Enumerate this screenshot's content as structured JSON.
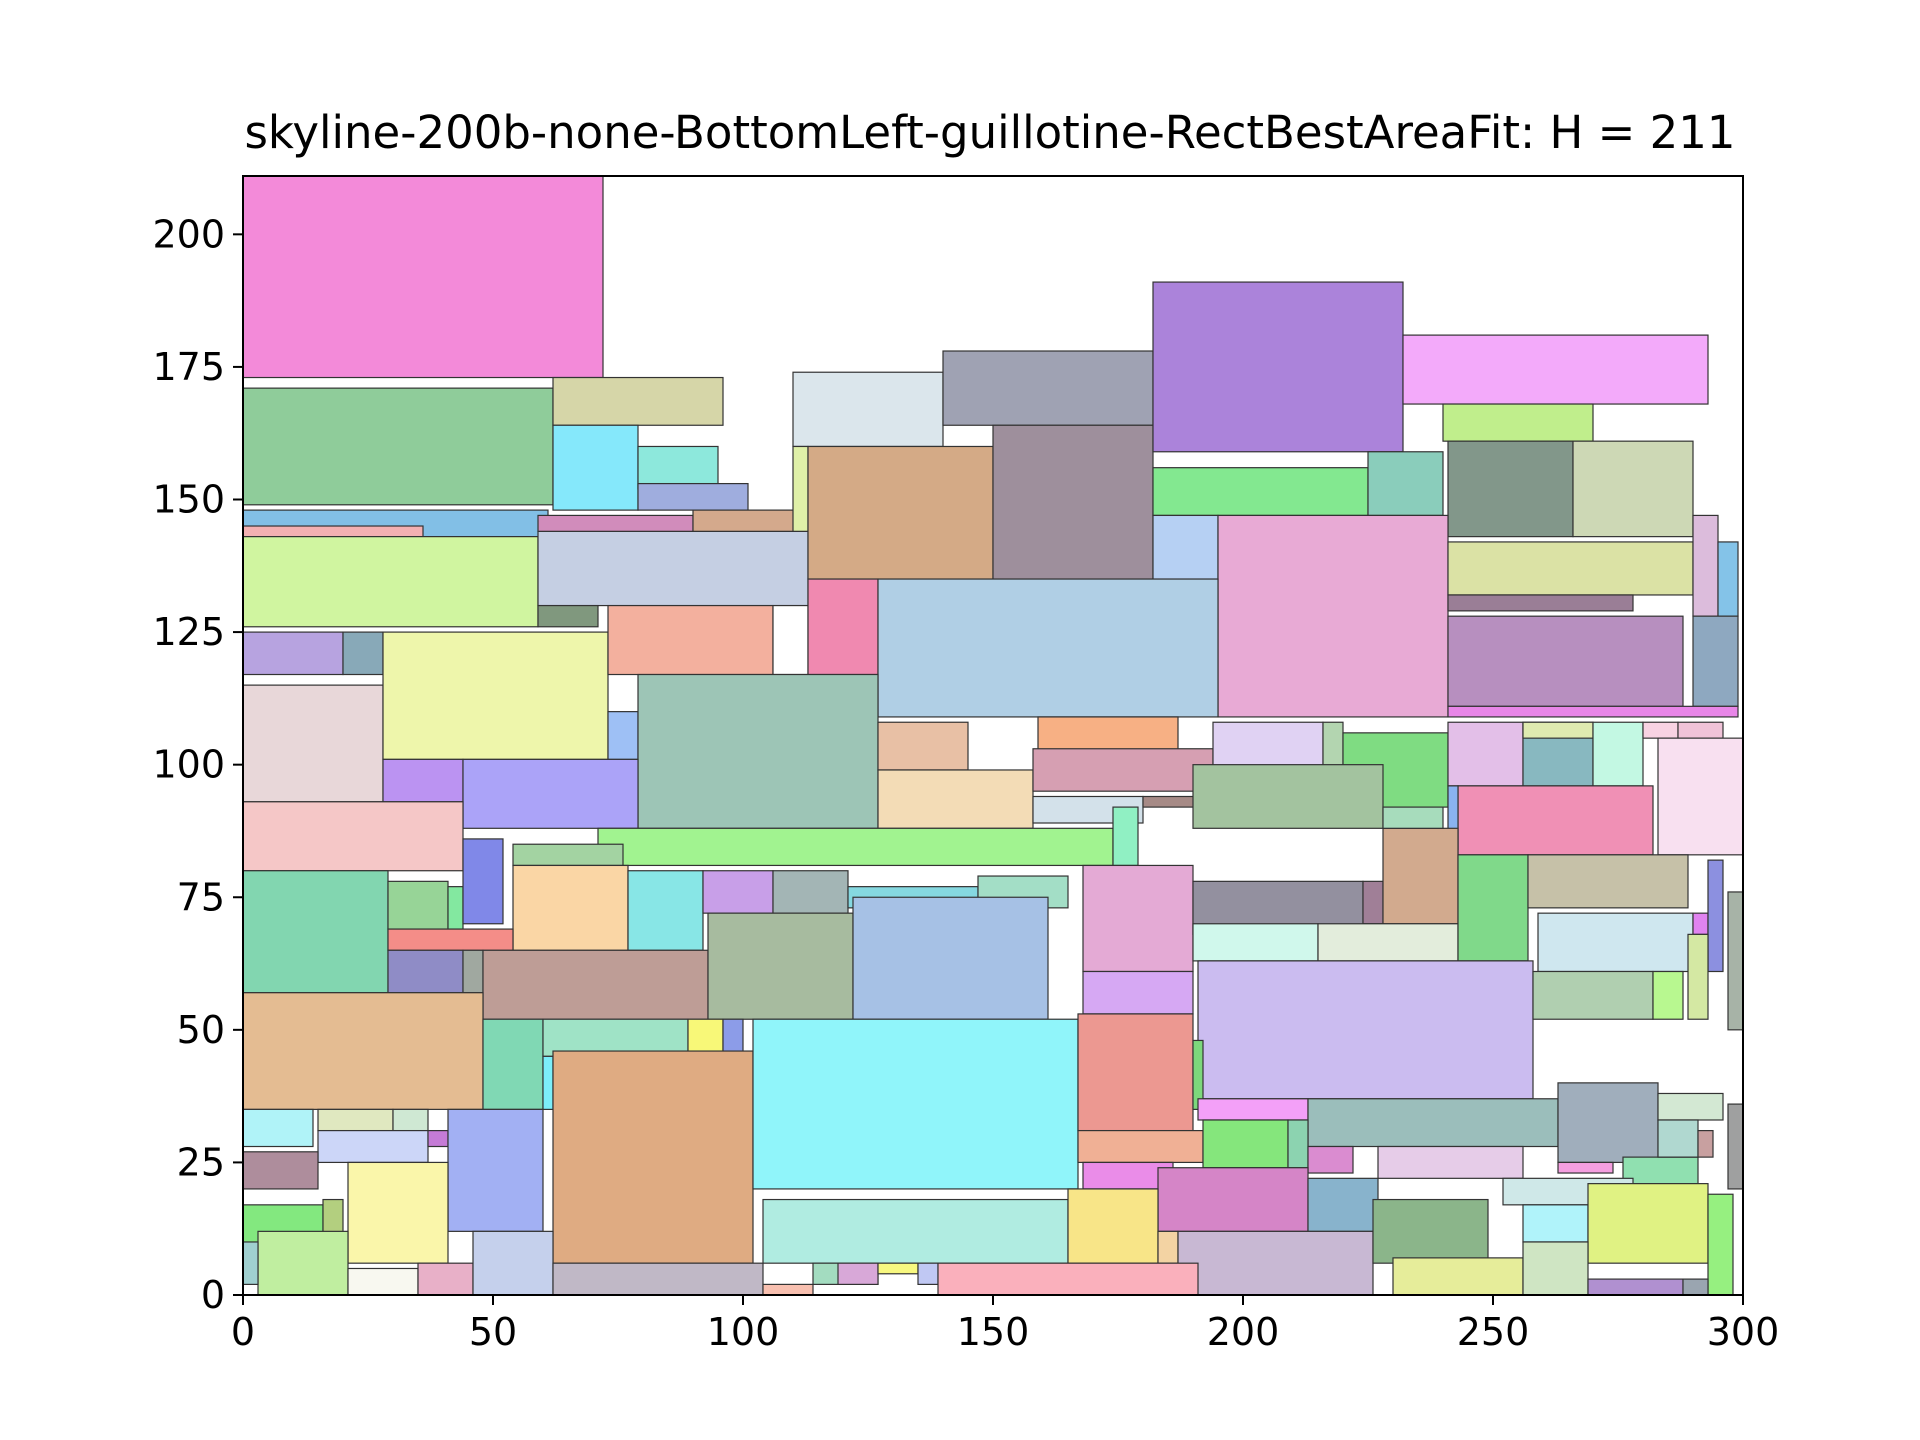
{
  "chart_data": {
    "type": "rectangle-packing",
    "title": "skyline-200b-none-BottomLeft-guillotine-RectBestAreaFit: H = 211",
    "xlabel": "",
    "ylabel": "",
    "xlim": [
      0,
      300
    ],
    "ylim": [
      0,
      211
    ],
    "xticks": [
      0,
      50,
      100,
      150,
      200,
      250,
      300
    ],
    "yticks": [
      0,
      25,
      50,
      75,
      100,
      125,
      150,
      175,
      200
    ],
    "grid": false,
    "legend": "none",
    "rects": [
      {
        "x": 0,
        "y": 173,
        "w": 72,
        "h": 38,
        "color": "#f38ad9"
      },
      {
        "x": 0,
        "y": 149,
        "w": 62,
        "h": 22,
        "color": "#8fcc9a"
      },
      {
        "x": 62,
        "y": 164,
        "w": 34,
        "h": 9,
        "color": "#d6d6a8"
      },
      {
        "x": 62,
        "y": 148,
        "w": 17,
        "h": 16,
        "color": "#85e8fb"
      },
      {
        "x": 79,
        "y": 152,
        "w": 16,
        "h": 8,
        "color": "#8de8dc"
      },
      {
        "x": 79,
        "y": 148,
        "w": 22,
        "h": 5,
        "color": "#9fadde"
      },
      {
        "x": 0,
        "y": 143,
        "w": 61,
        "h": 5,
        "color": "#82bfe6"
      },
      {
        "x": 0,
        "y": 143,
        "w": 36,
        "h": 2,
        "color": "#f3b0b2"
      },
      {
        "x": 0,
        "y": 126,
        "w": 59,
        "h": 17,
        "color": "#d0f5a0"
      },
      {
        "x": 59,
        "y": 130,
        "w": 54,
        "h": 14,
        "color": "#c5cfe3"
      },
      {
        "x": 59,
        "y": 144,
        "w": 31,
        "h": 3,
        "color": "#d18cbb"
      },
      {
        "x": 90,
        "y": 144,
        "w": 21,
        "h": 4,
        "color": "#d4a98c"
      },
      {
        "x": 59,
        "y": 126,
        "w": 12,
        "h": 4,
        "color": "#80987e"
      },
      {
        "x": 110,
        "y": 160,
        "w": 30,
        "h": 14,
        "color": "#dbe6ec"
      },
      {
        "x": 110,
        "y": 144,
        "w": 3,
        "h": 16,
        "color": "#dff0a8"
      },
      {
        "x": 113,
        "y": 135,
        "w": 37,
        "h": 25,
        "color": "#d4aa86"
      },
      {
        "x": 140,
        "y": 164,
        "w": 42,
        "h": 14,
        "color": "#9fa2b3"
      },
      {
        "x": 150,
        "y": 135,
        "w": 32,
        "h": 29,
        "color": "#9e8f9c"
      },
      {
        "x": 182,
        "y": 159,
        "w": 50,
        "h": 32,
        "color": "#ab83da"
      },
      {
        "x": 232,
        "y": 168,
        "w": 61,
        "h": 13,
        "color": "#f3aafa"
      },
      {
        "x": 240,
        "y": 161,
        "w": 30,
        "h": 7,
        "color": "#c0ee8c"
      },
      {
        "x": 182,
        "y": 147,
        "w": 43,
        "h": 9,
        "color": "#83e890"
      },
      {
        "x": 225,
        "y": 147,
        "w": 15,
        "h": 12,
        "color": "#8acdbb"
      },
      {
        "x": 241,
        "y": 143,
        "w": 25,
        "h": 18,
        "color": "#82978a"
      },
      {
        "x": 266,
        "y": 143,
        "w": 24,
        "h": 18,
        "color": "#cdd8b5"
      },
      {
        "x": 182,
        "y": 135,
        "w": 13,
        "h": 12,
        "color": "#b6d0f3"
      },
      {
        "x": 195,
        "y": 109,
        "w": 46,
        "h": 38,
        "color": "#e8aad5"
      },
      {
        "x": 241,
        "y": 132,
        "w": 49,
        "h": 10,
        "color": "#dbe2a5"
      },
      {
        "x": 290,
        "y": 128,
        "w": 5,
        "h": 19,
        "color": "#dcbcdc"
      },
      {
        "x": 295,
        "y": 128,
        "w": 4,
        "h": 14,
        "color": "#84c3e8"
      },
      {
        "x": 241,
        "y": 129,
        "w": 37,
        "h": 3,
        "color": "#9a7e96"
      },
      {
        "x": 241,
        "y": 111,
        "w": 47,
        "h": 17,
        "color": "#b78fbf"
      },
      {
        "x": 290,
        "y": 111,
        "w": 9,
        "h": 17,
        "color": "#8ea8c0"
      },
      {
        "x": 241,
        "y": 109,
        "w": 58,
        "h": 2,
        "color": "#e886e8"
      },
      {
        "x": 0,
        "y": 117,
        "w": 20,
        "h": 8,
        "color": "#b7a3e0"
      },
      {
        "x": 20,
        "y": 117,
        "w": 8,
        "h": 8,
        "color": "#88a9b8"
      },
      {
        "x": 0,
        "y": 93,
        "w": 28,
        "h": 22,
        "color": "#e8d7d9"
      },
      {
        "x": 28,
        "y": 101,
        "w": 45,
        "h": 24,
        "color": "#eef6ab"
      },
      {
        "x": 73,
        "y": 117,
        "w": 33,
        "h": 13,
        "color": "#f3b09e"
      },
      {
        "x": 106,
        "y": 117,
        "w": 7,
        "h": 13,
        "color": "#ffffff"
      },
      {
        "x": 113,
        "y": 117,
        "w": 14,
        "h": 18,
        "color": "#f089b0"
      },
      {
        "x": 127,
        "y": 109,
        "w": 68,
        "h": 26,
        "color": "#b0cfe5"
      },
      {
        "x": 73,
        "y": 101,
        "w": 6,
        "h": 9,
        "color": "#9ec0f5"
      },
      {
        "x": 79,
        "y": 88,
        "w": 48,
        "h": 29,
        "color": "#9dc5b6"
      },
      {
        "x": 28,
        "y": 93,
        "w": 16,
        "h": 8,
        "color": "#bb93f2"
      },
      {
        "x": 44,
        "y": 88,
        "w": 35,
        "h": 13,
        "color": "#aba3f8"
      },
      {
        "x": 0,
        "y": 80,
        "w": 44,
        "h": 13,
        "color": "#f5c7c7"
      },
      {
        "x": 127,
        "y": 99,
        "w": 18,
        "h": 9,
        "color": "#e8c0a5"
      },
      {
        "x": 159,
        "y": 102,
        "w": 28,
        "h": 7,
        "color": "#f7b084"
      },
      {
        "x": 127,
        "y": 88,
        "w": 31,
        "h": 11,
        "color": "#f3dcb6"
      },
      {
        "x": 158,
        "y": 95,
        "w": 36,
        "h": 8,
        "color": "#d69fb2"
      },
      {
        "x": 158,
        "y": 89,
        "w": 22,
        "h": 5,
        "color": "#d3e1ea"
      },
      {
        "x": 180,
        "y": 92,
        "w": 40,
        "h": 2,
        "color": "#a68a86"
      },
      {
        "x": 194,
        "y": 94,
        "w": 22,
        "h": 14,
        "color": "#e0d2f3"
      },
      {
        "x": 216,
        "y": 94,
        "w": 4,
        "h": 14,
        "color": "#b3d5b0"
      },
      {
        "x": 220,
        "y": 92,
        "w": 21,
        "h": 14,
        "color": "#7fdc82"
      },
      {
        "x": 241,
        "y": 96,
        "w": 15,
        "h": 12,
        "color": "#e3bfe8"
      },
      {
        "x": 256,
        "y": 96,
        "w": 14,
        "h": 12,
        "color": "#88b8c0"
      },
      {
        "x": 256,
        "y": 105,
        "w": 14,
        "h": 3,
        "color": "#dfeab0"
      },
      {
        "x": 270,
        "y": 96,
        "w": 10,
        "h": 12,
        "color": "#c3f8e3"
      },
      {
        "x": 280,
        "y": 105,
        "w": 7,
        "h": 3,
        "color": "#f8d3e3"
      },
      {
        "x": 287,
        "y": 105,
        "w": 9,
        "h": 3,
        "color": "#f0c3d8"
      },
      {
        "x": 283,
        "y": 83,
        "w": 17,
        "h": 22,
        "color": "#f8e0f0"
      },
      {
        "x": 243,
        "y": 83,
        "w": 39,
        "h": 13,
        "color": "#f090b5"
      },
      {
        "x": 241,
        "y": 84,
        "w": 2,
        "h": 12,
        "color": "#8ab3f0"
      },
      {
        "x": 71,
        "y": 81,
        "w": 103,
        "h": 7,
        "color": "#a1f390"
      },
      {
        "x": 174,
        "y": 81,
        "w": 5,
        "h": 11,
        "color": "#90f0c3"
      },
      {
        "x": 0,
        "y": 57,
        "w": 29,
        "h": 23,
        "color": "#82d6b0"
      },
      {
        "x": 29,
        "y": 69,
        "w": 12,
        "h": 9,
        "color": "#97d497"
      },
      {
        "x": 41,
        "y": 69,
        "w": 3,
        "h": 8,
        "color": "#83e8a0"
      },
      {
        "x": 44,
        "y": 70,
        "w": 8,
        "h": 16,
        "color": "#8088e8"
      },
      {
        "x": 54,
        "y": 81,
        "w": 22,
        "h": 4,
        "color": "#a3d3a2"
      },
      {
        "x": 54,
        "y": 65,
        "w": 23,
        "h": 16,
        "color": "#fad6a5"
      },
      {
        "x": 77,
        "y": 65,
        "w": 15,
        "h": 15,
        "color": "#88e6e6"
      },
      {
        "x": 92,
        "y": 72,
        "w": 14,
        "h": 8,
        "color": "#c89fe8"
      },
      {
        "x": 106,
        "y": 72,
        "w": 15,
        "h": 8,
        "color": "#a3b5b5"
      },
      {
        "x": 121,
        "y": 73,
        "w": 26,
        "h": 4,
        "color": "#85d8e0"
      },
      {
        "x": 147,
        "y": 73,
        "w": 18,
        "h": 6,
        "color": "#a3dec6"
      },
      {
        "x": 29,
        "y": 65,
        "w": 25,
        "h": 4,
        "color": "#f48d88"
      },
      {
        "x": 29,
        "y": 57,
        "w": 15,
        "h": 8,
        "color": "#8f8cc6"
      },
      {
        "x": 44,
        "y": 57,
        "w": 4,
        "h": 8,
        "color": "#a0a8a0"
      },
      {
        "x": 48,
        "y": 52,
        "w": 45,
        "h": 13,
        "color": "#be9d96"
      },
      {
        "x": 93,
        "y": 52,
        "w": 29,
        "h": 20,
        "color": "#a7bb9f"
      },
      {
        "x": 122,
        "y": 52,
        "w": 39,
        "h": 23,
        "color": "#a6c1e5"
      },
      {
        "x": 168,
        "y": 61,
        "w": 22,
        "h": 20,
        "color": "#e4aad5"
      },
      {
        "x": 168,
        "y": 53,
        "w": 22,
        "h": 8,
        "color": "#d6a8f3"
      },
      {
        "x": 190,
        "y": 68,
        "w": 34,
        "h": 10,
        "color": "#93909f"
      },
      {
        "x": 190,
        "y": 88,
        "w": 38,
        "h": 12,
        "color": "#a3c39f"
      },
      {
        "x": 224,
        "y": 70,
        "w": 4,
        "h": 8,
        "color": "#a07f97"
      },
      {
        "x": 228,
        "y": 70,
        "w": 15,
        "h": 18,
        "color": "#d2aa8e"
      },
      {
        "x": 228,
        "y": 88,
        "w": 12,
        "h": 4,
        "color": "#a7dcbc"
      },
      {
        "x": 190,
        "y": 63,
        "w": 25,
        "h": 7,
        "color": "#d0f8ec"
      },
      {
        "x": 215,
        "y": 63,
        "w": 28,
        "h": 7,
        "color": "#e3eddc"
      },
      {
        "x": 243,
        "y": 63,
        "w": 14,
        "h": 20,
        "color": "#80d98a"
      },
      {
        "x": 257,
        "y": 73,
        "w": 32,
        "h": 10,
        "color": "#c6c1a8"
      },
      {
        "x": 259,
        "y": 61,
        "w": 31,
        "h": 11,
        "color": "#cfe7ef"
      },
      {
        "x": 290,
        "y": 68,
        "w": 3,
        "h": 4,
        "color": "#e083f0"
      },
      {
        "x": 293,
        "y": 61,
        "w": 3,
        "h": 21,
        "color": "#8c90e0"
      },
      {
        "x": 297,
        "y": 50,
        "w": 3,
        "h": 26,
        "color": "#a7b3a7"
      },
      {
        "x": 191,
        "y": 37,
        "w": 67,
        "h": 26,
        "color": "#cbbcf0"
      },
      {
        "x": 258,
        "y": 52,
        "w": 24,
        "h": 9,
        "color": "#b0cfb0"
      },
      {
        "x": 282,
        "y": 52,
        "w": 6,
        "h": 9,
        "color": "#b8f890"
      },
      {
        "x": 289,
        "y": 52,
        "w": 4,
        "h": 16,
        "color": "#d4e8a3"
      },
      {
        "x": 0,
        "y": 35,
        "w": 48,
        "h": 22,
        "color": "#e4bc92"
      },
      {
        "x": 48,
        "y": 35,
        "w": 12,
        "h": 17,
        "color": "#80d8b4"
      },
      {
        "x": 60,
        "y": 45,
        "w": 29,
        "h": 7,
        "color": "#9fe3c6"
      },
      {
        "x": 89,
        "y": 45,
        "w": 7,
        "h": 7,
        "color": "#f8f878"
      },
      {
        "x": 96,
        "y": 45,
        "w": 4,
        "h": 7,
        "color": "#8c9ce8"
      },
      {
        "x": 60,
        "y": 35,
        "w": 2,
        "h": 10,
        "color": "#7ceefa"
      },
      {
        "x": 0,
        "y": 28,
        "w": 14,
        "h": 7,
        "color": "#b0f3f8"
      },
      {
        "x": 15,
        "y": 31,
        "w": 15,
        "h": 4,
        "color": "#e0e8c0"
      },
      {
        "x": 30,
        "y": 31,
        "w": 7,
        "h": 4,
        "color": "#cfe8d3"
      },
      {
        "x": 15,
        "y": 25,
        "w": 22,
        "h": 6,
        "color": "#ccd6f8"
      },
      {
        "x": 37,
        "y": 28,
        "w": 4,
        "h": 3,
        "color": "#c57bd6"
      },
      {
        "x": 41,
        "y": 12,
        "w": 19,
        "h": 23,
        "color": "#a2b0f3"
      },
      {
        "x": 62,
        "y": 6,
        "w": 40,
        "h": 40,
        "color": "#dfab82"
      },
      {
        "x": 102,
        "y": 20,
        "w": 65,
        "h": 32,
        "color": "#90f5fa"
      },
      {
        "x": 167,
        "y": 31,
        "w": 23,
        "h": 22,
        "color": "#ec9891"
      },
      {
        "x": 190,
        "y": 35,
        "w": 2,
        "h": 13,
        "color": "#7dd87c"
      },
      {
        "x": 191,
        "y": 33,
        "w": 22,
        "h": 4,
        "color": "#f3a0f8"
      },
      {
        "x": 213,
        "y": 28,
        "w": 50,
        "h": 9,
        "color": "#9bbebb"
      },
      {
        "x": 263,
        "y": 25,
        "w": 20,
        "h": 15,
        "color": "#a0aebc"
      },
      {
        "x": 283,
        "y": 33,
        "w": 13,
        "h": 5,
        "color": "#d3e8d3"
      },
      {
        "x": 297,
        "y": 20,
        "w": 3,
        "h": 16,
        "color": "#9fa0a0"
      },
      {
        "x": 0,
        "y": 20,
        "w": 15,
        "h": 7,
        "color": "#ae8d9c"
      },
      {
        "x": 0,
        "y": 8,
        "w": 16,
        "h": 9,
        "color": "#83e87f"
      },
      {
        "x": 16,
        "y": 8,
        "w": 4,
        "h": 10,
        "color": "#b3cf7f"
      },
      {
        "x": 21,
        "y": 6,
        "w": 20,
        "h": 19,
        "color": "#faf6aa"
      },
      {
        "x": 167,
        "y": 25,
        "w": 25,
        "h": 6,
        "color": "#f0b095"
      },
      {
        "x": 168,
        "y": 20,
        "w": 18,
        "h": 5,
        "color": "#ea8ce8"
      },
      {
        "x": 192,
        "y": 24,
        "w": 17,
        "h": 9,
        "color": "#85e67c"
      },
      {
        "x": 209,
        "y": 24,
        "w": 4,
        "h": 9,
        "color": "#8cd3b0"
      },
      {
        "x": 213,
        "y": 23,
        "w": 9,
        "h": 5,
        "color": "#da8cd0"
      },
      {
        "x": 227,
        "y": 22,
        "w": 29,
        "h": 6,
        "color": "#e6cce8"
      },
      {
        "x": 263,
        "y": 23,
        "w": 11,
        "h": 2,
        "color": "#f59fe0"
      },
      {
        "x": 276,
        "y": 21,
        "w": 15,
        "h": 5,
        "color": "#90e0b0"
      },
      {
        "x": 283,
        "y": 26,
        "w": 8,
        "h": 7,
        "color": "#b0d8d0"
      },
      {
        "x": 291,
        "y": 26,
        "w": 3,
        "h": 5,
        "color": "#c8a0a0"
      },
      {
        "x": 183,
        "y": 12,
        "w": 30,
        "h": 12,
        "color": "#d585c7"
      },
      {
        "x": 213,
        "y": 12,
        "w": 14,
        "h": 10,
        "color": "#88b3cc"
      },
      {
        "x": 104,
        "y": 6,
        "w": 61,
        "h": 12,
        "color": "#b0ece1"
      },
      {
        "x": 165,
        "y": 6,
        "w": 18,
        "h": 14,
        "color": "#f8e588"
      },
      {
        "x": 183,
        "y": 6,
        "w": 4,
        "h": 6,
        "color": "#f3d3a3"
      },
      {
        "x": 187,
        "y": 0,
        "w": 39,
        "h": 12,
        "color": "#c8b8d3"
      },
      {
        "x": 226,
        "y": 6,
        "w": 23,
        "h": 12,
        "color": "#8bb58a"
      },
      {
        "x": 252,
        "y": 17,
        "w": 26,
        "h": 5,
        "color": "#cfe8e8"
      },
      {
        "x": 256,
        "y": 10,
        "w": 13,
        "h": 7,
        "color": "#b0f3fa"
      },
      {
        "x": 269,
        "y": 6,
        "w": 24,
        "h": 15,
        "color": "#e0f283"
      },
      {
        "x": 293,
        "y": 0,
        "w": 5,
        "h": 19,
        "color": "#96f080"
      },
      {
        "x": 3,
        "y": 0,
        "w": 18,
        "h": 12,
        "color": "#c0eea0"
      },
      {
        "x": 0,
        "y": 2,
        "w": 3,
        "h": 8,
        "color": "#a0d0d0"
      },
      {
        "x": 21,
        "y": 0,
        "w": 14,
        "h": 5,
        "color": "#f8f8f0"
      },
      {
        "x": 35,
        "y": 0,
        "w": 11,
        "h": 6,
        "color": "#e8b0c8"
      },
      {
        "x": 46,
        "y": 0,
        "w": 16,
        "h": 12,
        "color": "#c5d0ec"
      },
      {
        "x": 62,
        "y": 0,
        "w": 42,
        "h": 6,
        "color": "#c0b8c6"
      },
      {
        "x": 104,
        "y": 0,
        "w": 10,
        "h": 2,
        "color": "#f8c0b0"
      },
      {
        "x": 114,
        "y": 2,
        "w": 13,
        "h": 4,
        "color": "#a3dcc0"
      },
      {
        "x": 119,
        "y": 2,
        "w": 8,
        "h": 4,
        "color": "#d8a8d8"
      },
      {
        "x": 127,
        "y": 4,
        "w": 8,
        "h": 2,
        "color": "#f8f880"
      },
      {
        "x": 135,
        "y": 2,
        "w": 4,
        "h": 4,
        "color": "#c0c8f3"
      },
      {
        "x": 139,
        "y": 0,
        "w": 52,
        "h": 6,
        "color": "#fab0bc"
      },
      {
        "x": 230,
        "y": 0,
        "w": 26,
        "h": 7,
        "color": "#e6ed9a"
      },
      {
        "x": 256,
        "y": 0,
        "w": 13,
        "h": 10,
        "color": "#cfe5c3"
      },
      {
        "x": 269,
        "y": 0,
        "w": 19,
        "h": 3,
        "color": "#b090d0"
      },
      {
        "x": 288,
        "y": 0,
        "w": 5,
        "h": 3,
        "color": "#9aa5b0"
      }
    ]
  }
}
